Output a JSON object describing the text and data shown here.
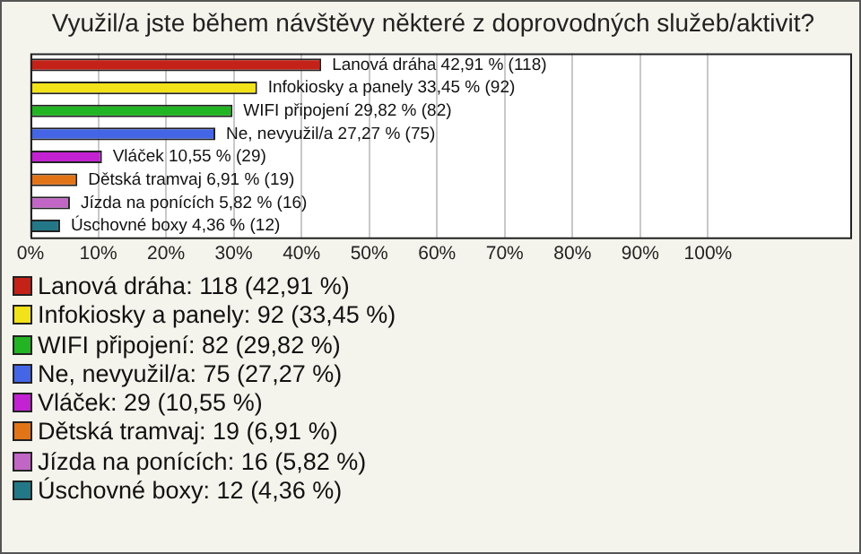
{
  "chart_data": {
    "type": "bar",
    "orientation": "horizontal",
    "title": "Využil/a jste během návštěvy některé z doprovodných služeb/aktivit?",
    "categories": [
      "Lanová dráha",
      "Infokiosky a panely",
      "WIFI připojení",
      "Ne, nevyužil/a",
      "Vláček",
      "Dětská tramvaj",
      "Jízda na ponících",
      "Úschovné boxy"
    ],
    "values": [
      42.91,
      33.45,
      29.82,
      27.27,
      10.55,
      6.91,
      5.82,
      4.36
    ],
    "colors": [
      "#c42218",
      "#f2e21a",
      "#22b422",
      "#4466e6",
      "#c222d2",
      "#e27418",
      "#c266c6",
      "#237888"
    ],
    "value_labels": [
      "42,91 % (118)",
      "33,45 % (92)",
      "29,82 % (82)",
      "27,27 % (75)",
      "10,55 % (29)",
      "6,91 % (19)",
      "5,82 % (16)",
      "4,36 % (12)"
    ],
    "xlim": [
      0,
      121
    ],
    "xticks": [
      {
        "value": 0,
        "label": "0%"
      },
      {
        "value": 10,
        "label": "10%"
      },
      {
        "value": 20,
        "label": "20%"
      },
      {
        "value": 30,
        "label": "30%"
      },
      {
        "value": 40,
        "label": "40%"
      },
      {
        "value": 50,
        "label": "50%"
      },
      {
        "value": 60,
        "label": "60%"
      },
      {
        "value": 70,
        "label": "70%"
      },
      {
        "value": 80,
        "label": "80%"
      },
      {
        "value": 90,
        "label": "90%"
      },
      {
        "value": 100,
        "label": "100%"
      }
    ],
    "grid": "x",
    "tick_labels": "x",
    "annotations": [
      "Lanová dráha: 118 (42,91 %)",
      "Infokiosky a panely: 92 (33,45 %)",
      "WIFI připojení: 82 (29,82 %)",
      "Ne, nevyužil/a: 75 (27,27 %)",
      "Vláček: 29 (10,55 %)",
      "Dětská tramvaj: 19 (6,91 %)",
      "Jízda na ponících: 16 (5,82 %)",
      "Úschovné boxy: 12 (4,36 %)"
    ]
  }
}
